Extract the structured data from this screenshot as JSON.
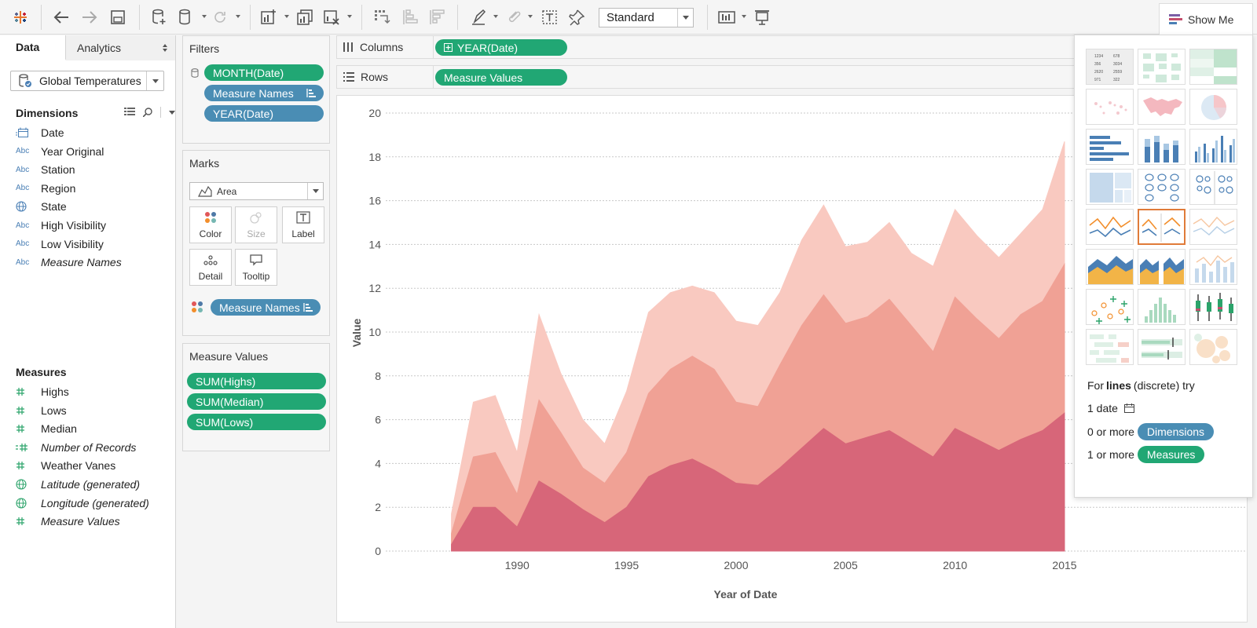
{
  "toolbar": {
    "fit_mode": "Standard",
    "show_me_label": "Show Me"
  },
  "data_pane": {
    "tabs": [
      "Data",
      "Analytics"
    ],
    "datasource": "Global Temperatures",
    "dimensions_title": "Dimensions",
    "dimensions": [
      {
        "name": "Date",
        "type": "date",
        "italic": false
      },
      {
        "name": "Year Original",
        "type": "Abc",
        "italic": false
      },
      {
        "name": "Station",
        "type": "Abc",
        "italic": false
      },
      {
        "name": "Region",
        "type": "Abc",
        "italic": false
      },
      {
        "name": "State",
        "type": "geo",
        "italic": false
      },
      {
        "name": "High Visibility",
        "type": "Abc",
        "italic": false
      },
      {
        "name": "Low Visibility",
        "type": "Abc",
        "italic": false
      },
      {
        "name": "Measure Names",
        "type": "Abc",
        "italic": true
      }
    ],
    "measures_title": "Measures",
    "measures": [
      {
        "name": "Highs",
        "type": "#",
        "italic": false
      },
      {
        "name": "Lows",
        "type": "#",
        "italic": false
      },
      {
        "name": "Median",
        "type": "#",
        "italic": false
      },
      {
        "name": "Number of Records",
        "type": "=#",
        "italic": true
      },
      {
        "name": "Weather Vanes",
        "type": "#",
        "italic": false
      },
      {
        "name": "Latitude (generated)",
        "type": "geo",
        "italic": true
      },
      {
        "name": "Longitude (generated)",
        "type": "geo",
        "italic": true
      },
      {
        "name": "Measure Values",
        "type": "#",
        "italic": true
      }
    ]
  },
  "filters": {
    "title": "Filters",
    "pills": [
      "MONTH(Date)",
      "Measure Names",
      "YEAR(Date)"
    ]
  },
  "marks": {
    "title": "Marks",
    "type": "Area",
    "buttons": [
      "Color",
      "Size",
      "Label",
      "Detail",
      "Tooltip"
    ],
    "color_pill": "Measure Names"
  },
  "measure_values": {
    "title": "Measure Values",
    "pills": [
      "SUM(Highs)",
      "SUM(Median)",
      "SUM(Lows)"
    ]
  },
  "shelves": {
    "columns_label": "Columns",
    "columns_pill": "YEAR(Date)",
    "rows_label": "Rows",
    "rows_pill": "Measure Values"
  },
  "show_me": {
    "hint_prefix": "For",
    "hint_bold": "lines",
    "hint_suffix": "(discrete) try",
    "req_date": "1 date",
    "req_dims_prefix": "0 or more",
    "req_dims": "Dimensions",
    "req_meas_prefix": "1 or more",
    "req_meas": "Measures"
  },
  "chart_data": {
    "type": "area",
    "xlabel": "Year of Date",
    "ylabel": "Value",
    "xlim": [
      1984,
      2015
    ],
    "ylim": [
      0,
      20
    ],
    "x_ticks": [
      "1990",
      "1995",
      "2000",
      "2005",
      "2010",
      "2015"
    ],
    "x_tick_values": [
      1990,
      1995,
      2000,
      2005,
      2010,
      2015
    ],
    "y_ticks": [
      "0",
      "2",
      "4",
      "6",
      "8",
      "10",
      "12",
      "14",
      "16",
      "18",
      "20"
    ],
    "x": [
      1987,
      1988,
      1989,
      1990,
      1991,
      1992,
      1993,
      1994,
      1995,
      1996,
      1997,
      1998,
      1999,
      2000,
      2001,
      2002,
      2003,
      2004,
      2005,
      2006,
      2007,
      2008,
      2009,
      2010,
      2011,
      2012,
      2013,
      2014,
      2015
    ],
    "series": [
      {
        "name": "SUM(Highs)",
        "color": "#f9c9c0",
        "values": [
          0.9,
          2.5,
          2.6,
          1.9,
          3.9,
          2.7,
          2.2,
          1.8,
          2.8,
          3.7,
          3.5,
          3.2,
          3.5,
          3.7,
          3.7,
          3.3,
          3.9,
          4.1,
          3.5,
          3.4,
          3.5,
          3.3,
          3.9,
          4.0,
          3.8,
          3.7,
          3.7,
          4.2,
          5.6
        ]
      },
      {
        "name": "SUM(Median)",
        "color": "#f0a195",
        "values": [
          0.5,
          2.3,
          2.5,
          1.5,
          3.7,
          2.8,
          1.9,
          1.8,
          2.5,
          3.8,
          4.4,
          4.7,
          4.6,
          3.7,
          3.6,
          4.7,
          5.6,
          6.1,
          5.5,
          5.5,
          6.0,
          5.4,
          4.8,
          6.0,
          5.5,
          5.1,
          5.7,
          5.9,
          6.8
        ]
      },
      {
        "name": "SUM(Lows)",
        "color": "#d76679",
        "values": [
          0.3,
          2.0,
          2.0,
          1.1,
          3.2,
          2.6,
          1.9,
          1.3,
          2.0,
          3.4,
          3.9,
          4.2,
          3.7,
          3.1,
          3.0,
          3.8,
          4.7,
          5.6,
          4.9,
          5.2,
          5.5,
          4.9,
          4.3,
          5.6,
          5.1,
          4.6,
          5.1,
          5.5,
          6.3
        ]
      }
    ]
  }
}
